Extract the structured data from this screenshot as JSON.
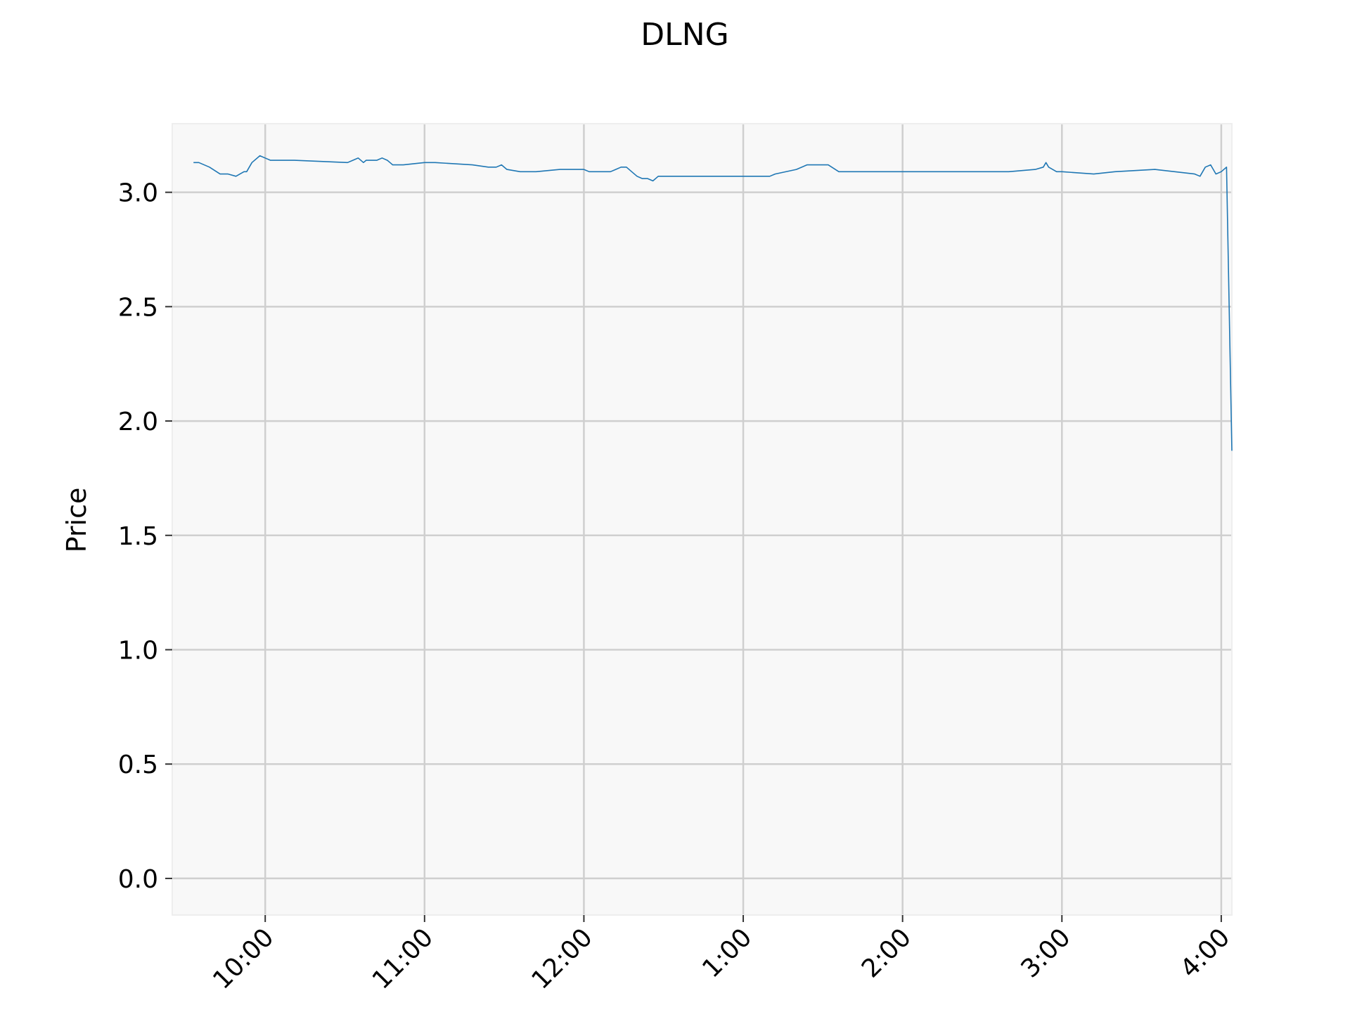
{
  "chart_data": {
    "type": "line",
    "title": "DLNG",
    "xlabel": "",
    "ylabel": "Price",
    "grid": true,
    "x_ticks": [
      "10:00",
      "11:00",
      "12:00",
      "1:00",
      "2:00",
      "3:00",
      "4:00"
    ],
    "y_ticks": [
      "0.0",
      "0.5",
      "1.0",
      "1.5",
      "2.0",
      "2.5",
      "3.0"
    ],
    "ylim": [
      -0.16,
      3.3
    ],
    "xlim": [
      "09:25",
      "16:04"
    ],
    "colors": {
      "line": "#1f77b4",
      "plot_bg": "#f8f8f8",
      "grid": "#cfcfcf"
    },
    "series": [
      {
        "x": [
          "09:33",
          "09:35",
          "09:39",
          "09:43",
          "09:46",
          "09:49",
          "09:52",
          "09:53",
          "09:55",
          "09:58",
          "10:02",
          "10:04",
          "10:11",
          "10:31",
          "10:33",
          "10:35",
          "10:37",
          "10:38",
          "10:42",
          "10:44",
          "10:46",
          "10:47",
          "10:48",
          "10:50",
          "10:52",
          "11:00",
          "11:04",
          "11:18",
          "11:24",
          "11:27",
          "11:29",
          "11:31",
          "11:36",
          "11:42",
          "11:51",
          "11:57",
          "12:00",
          "12:02",
          "12:04",
          "12:06",
          "12:08",
          "12:10",
          "12:12",
          "12:14",
          "12:16",
          "12:18",
          "12:20",
          "12:22",
          "12:24",
          "12:26",
          "12:28",
          "12:30",
          "12:32",
          "12:34",
          "12:36",
          "12:38",
          "12:40",
          "12:42",
          "12:44",
          "12:46",
          "12:48",
          "12:50",
          "12:52",
          "12:54",
          "12:56",
          "12:58",
          "13:00",
          "13:10",
          "13:12",
          "13:20",
          "13:24",
          "13:28",
          "13:32",
          "13:36",
          "13:40",
          "13:42",
          "13:44",
          "13:46",
          "13:48",
          "13:50",
          "13:52",
          "13:54",
          "13:56",
          "13:58",
          "14:00",
          "14:30",
          "14:40",
          "14:50",
          "14:53",
          "14:54",
          "14:55",
          "14:58",
          "15:00",
          "15:12",
          "15:20",
          "15:35",
          "15:50",
          "15:52",
          "15:54",
          "15:56",
          "15:58",
          "16:00",
          "16:02",
          "16:04"
        ],
        "y": [
          3.13,
          3.13,
          3.11,
          3.08,
          3.08,
          3.07,
          3.09,
          3.09,
          3.13,
          3.16,
          3.14,
          3.14,
          3.14,
          3.13,
          3.14,
          3.15,
          3.13,
          3.14,
          3.14,
          3.15,
          3.14,
          3.13,
          3.12,
          3.12,
          3.12,
          3.13,
          3.13,
          3.12,
          3.11,
          3.11,
          3.12,
          3.1,
          3.09,
          3.09,
          3.1,
          3.1,
          3.1,
          3.09,
          3.09,
          3.09,
          3.09,
          3.09,
          3.1,
          3.11,
          3.11,
          3.09,
          3.07,
          3.06,
          3.06,
          3.05,
          3.07,
          3.07,
          3.07,
          3.07,
          3.07,
          3.07,
          3.07,
          3.07,
          3.07,
          3.07,
          3.07,
          3.07,
          3.07,
          3.07,
          3.07,
          3.07,
          3.07,
          3.07,
          3.08,
          3.1,
          3.12,
          3.12,
          3.12,
          3.09,
          3.09,
          3.09,
          3.09,
          3.09,
          3.09,
          3.09,
          3.09,
          3.09,
          3.09,
          3.09,
          3.09,
          3.09,
          3.09,
          3.1,
          3.11,
          3.13,
          3.11,
          3.09,
          3.09,
          3.08,
          3.09,
          3.1,
          3.08,
          3.07,
          3.11,
          3.12,
          3.08,
          3.09,
          3.11,
          1.87
        ]
      }
    ]
  }
}
